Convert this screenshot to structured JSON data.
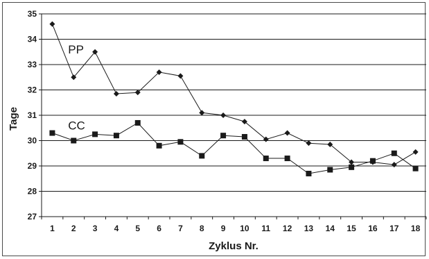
{
  "chart_data": {
    "type": "line",
    "xlabel": "Zyklus Nr.",
    "ylabel": "Tage",
    "x": [
      1,
      2,
      3,
      4,
      5,
      6,
      7,
      8,
      9,
      10,
      11,
      12,
      13,
      14,
      15,
      16,
      17,
      18
    ],
    "ylim": [
      27,
      35
    ],
    "yticks": [
      27,
      28,
      29,
      30,
      31,
      32,
      33,
      34,
      35
    ],
    "grid": "horizontal",
    "series": [
      {
        "name": "PP",
        "marker": "diamond",
        "color": "#1a1a1a",
        "values": [
          34.6,
          32.5,
          33.5,
          31.85,
          31.9,
          32.7,
          32.55,
          31.1,
          31.0,
          30.75,
          30.05,
          30.3,
          29.9,
          29.85,
          29.15,
          29.15,
          29.05,
          29.55
        ]
      },
      {
        "name": "CC",
        "marker": "square",
        "color": "#1a1a1a",
        "values": [
          30.3,
          30.0,
          30.25,
          30.2,
          30.7,
          29.8,
          29.95,
          29.4,
          30.2,
          30.15,
          29.3,
          29.3,
          28.7,
          28.85,
          28.95,
          29.2,
          29.5,
          28.9
        ]
      }
    ]
  }
}
